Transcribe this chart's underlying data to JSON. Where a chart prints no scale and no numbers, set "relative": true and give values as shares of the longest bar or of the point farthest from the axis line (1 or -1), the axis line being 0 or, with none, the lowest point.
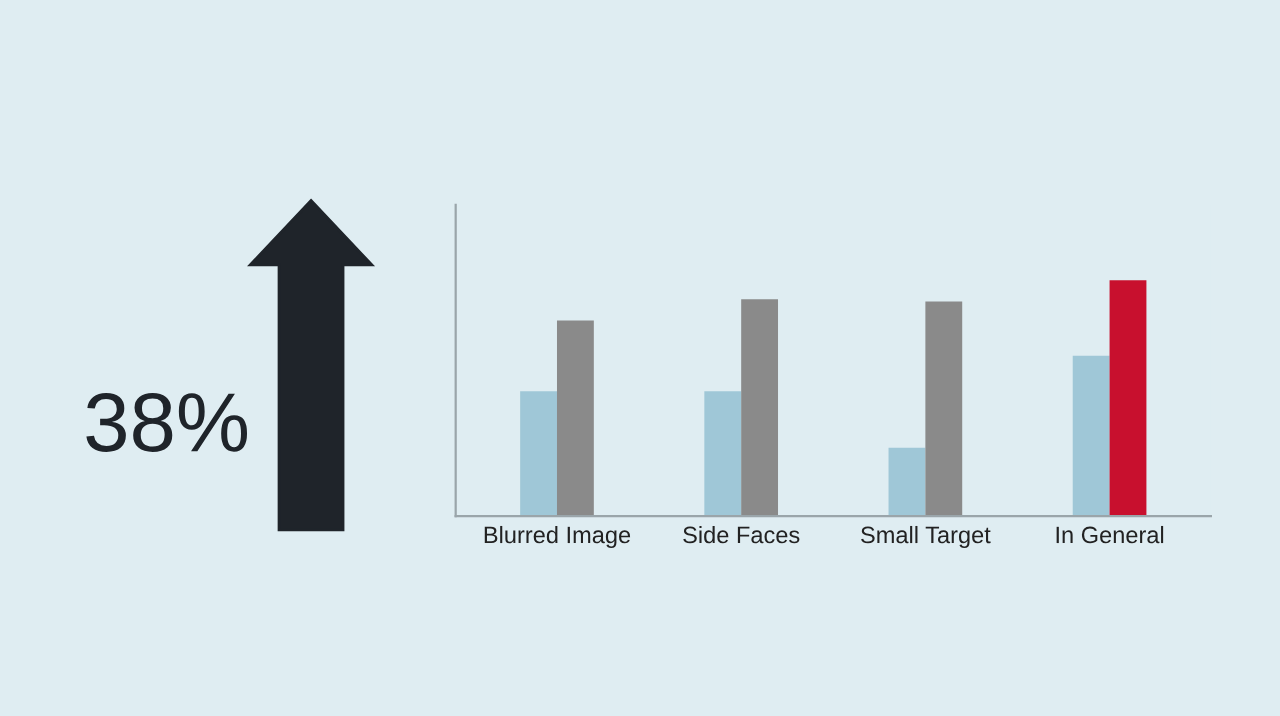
{
  "chart_data": {
    "type": "bar",
    "relative": true,
    "categories": [
      "Blurred Image",
      "Side Faces",
      "Small Target",
      "In General"
    ],
    "series": [
      {
        "color": "#9fc7d7",
        "values": [
          0.53,
          0.53,
          0.29,
          0.68
        ]
      },
      {
        "colors": [
          "#8a8a8a",
          "#8a8a8a",
          "#8a8a8a",
          "#c8102e"
        ],
        "values": [
          0.83,
          0.92,
          0.91,
          1.0
        ]
      }
    ],
    "annotations": [
      "38%"
    ],
    "grid": false,
    "legend": false
  }
}
